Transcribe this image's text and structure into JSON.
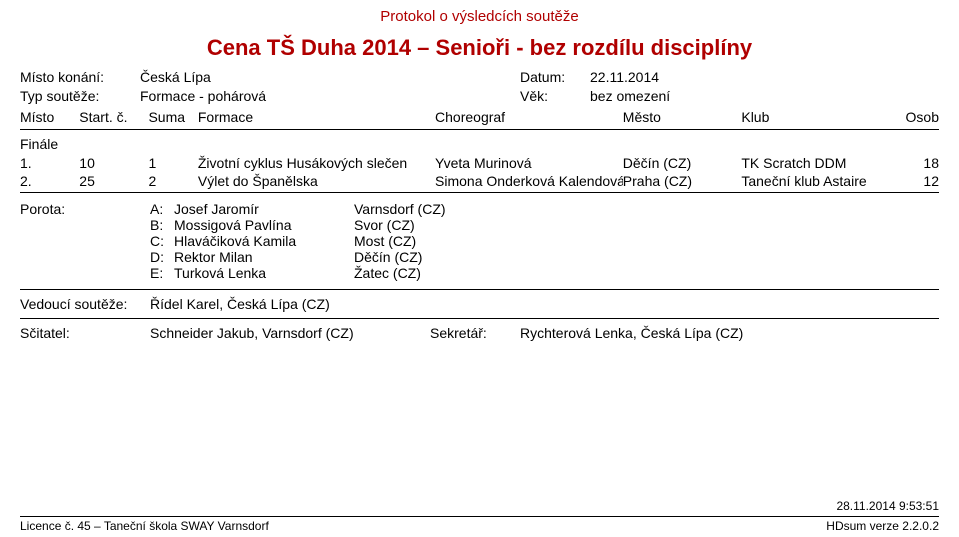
{
  "protocol_title": "Protokol o výsledcích soutěže",
  "main_title": "Cena TŠ Duha 2014 – Senioři - bez rozdílu disciplíny",
  "meta": {
    "place_label": "Místo konání:",
    "place_value": "Česká Lípa",
    "date_label": "Datum:",
    "date_value": "22.11.2014",
    "type_label": "Typ soutěže:",
    "type_value": "Formace - pohárová",
    "age_label": "Věk:",
    "age_value": "bez omezení"
  },
  "columns": {
    "misto": "Místo",
    "startc": "Start. č.",
    "suma": "Suma",
    "formace": "Formace",
    "choreo": "Choreograf",
    "mesto": "Město",
    "klub": "Klub",
    "osob": "Osob"
  },
  "section": "Finále",
  "results": [
    {
      "place": "1.",
      "start": "10",
      "suma": "1",
      "formace": "Životní cyklus Husákových slečen",
      "choreo": "Yveta Murinová",
      "mesto": "Děčín (CZ)",
      "klub": "TK Scratch DDM",
      "osob": "18"
    },
    {
      "place": "2.",
      "start": "25",
      "suma": "2",
      "formace": "Výlet do Španělska",
      "choreo": "Simona Onderková Kalendová",
      "mesto": "Praha (CZ)",
      "klub": "Taneční klub Astaire",
      "osob": "12"
    }
  ],
  "jury_label": "Porota:",
  "jury": [
    {
      "letter": "A:",
      "name": "Josef Jaromír",
      "city": "Varnsdorf (CZ)"
    },
    {
      "letter": "B:",
      "name": "Mossigová Pavlína",
      "city": "Svor (CZ)"
    },
    {
      "letter": "C:",
      "name": "Hlaváčiková Kamila",
      "city": "Most (CZ)"
    },
    {
      "letter": "D:",
      "name": "Rektor Milan",
      "city": "Děčín (CZ)"
    },
    {
      "letter": "E:",
      "name": "Turková Lenka",
      "city": "Žatec (CZ)"
    }
  ],
  "vedouci_label": "Vedoucí soutěže:",
  "vedouci_value": "Řídel Karel, Česká Lípa (CZ)",
  "scitatel_label": "Sčitatel:",
  "scitatel_value": "Schneider Jakub, Varnsdorf (CZ)",
  "sekretar_label": "Sekretář:",
  "sekretar_value": "Rychterová Lenka, Česká Lípa (CZ)",
  "footer": {
    "timestamp": "28.11.2014 9:53:51",
    "licence": "Licence č. 45 – Taneční škola SWAY Varnsdorf",
    "version": "HDsum verze 2.2.0.2"
  }
}
